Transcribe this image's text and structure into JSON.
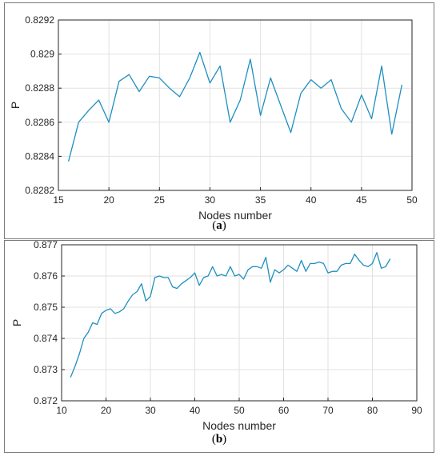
{
  "chart_data": [
    {
      "type": "line",
      "panel_label": "a",
      "xlabel": "Nodes number",
      "ylabel": "P",
      "xlim": [
        15,
        50
      ],
      "ylim": [
        0.8282,
        0.8292
      ],
      "xticks": [
        "15",
        "20",
        "25",
        "30",
        "35",
        "40",
        "45",
        "50"
      ],
      "yticks": [
        "0.8282",
        "0.8284",
        "0.8286",
        "0.8288",
        "0.829",
        "0.8292"
      ],
      "grid": true,
      "color": "#1f8fbf",
      "x": [
        16,
        17,
        18,
        19,
        20,
        21,
        22,
        23,
        24,
        25,
        26,
        27,
        28,
        29,
        30,
        31,
        32,
        33,
        34,
        35,
        36,
        37,
        38,
        39,
        40,
        41,
        42,
        43,
        44,
        45,
        46,
        47,
        48,
        49
      ],
      "y": [
        0.82837,
        0.8286,
        0.82867,
        0.82873,
        0.8286,
        0.82884,
        0.82888,
        0.82878,
        0.82887,
        0.82886,
        0.8288,
        0.82875,
        0.82886,
        0.82901,
        0.82883,
        0.82893,
        0.8286,
        0.82873,
        0.82897,
        0.82864,
        0.82886,
        0.8287,
        0.82854,
        0.82877,
        0.82885,
        0.8288,
        0.82885,
        0.82868,
        0.8286,
        0.82876,
        0.82862,
        0.82893,
        0.82853,
        0.82882
      ]
    },
    {
      "type": "line",
      "panel_label": "b",
      "xlabel": "Nodes number",
      "ylabel": "P",
      "xlim": [
        10,
        90
      ],
      "ylim": [
        0.872,
        0.877
      ],
      "xticks": [
        "10",
        "20",
        "30",
        "40",
        "50",
        "60",
        "70",
        "80",
        "90"
      ],
      "yticks": [
        "0.872",
        "0.873",
        "0.874",
        "0.875",
        "0.876",
        "0.877"
      ],
      "grid": true,
      "color": "#1f8fbf",
      "x": [
        12,
        13,
        14,
        15,
        16,
        17,
        18,
        19,
        20,
        21,
        22,
        23,
        24,
        25,
        26,
        27,
        28,
        29,
        30,
        31,
        32,
        33,
        34,
        35,
        36,
        37,
        38,
        39,
        40,
        41,
        42,
        43,
        44,
        45,
        46,
        47,
        48,
        49,
        50,
        51,
        52,
        53,
        54,
        55,
        56,
        57,
        58,
        59,
        60,
        61,
        62,
        63,
        64,
        65,
        66,
        67,
        68,
        69,
        70,
        71,
        72,
        73,
        74,
        75,
        76,
        77,
        78,
        79,
        80,
        81,
        82,
        83,
        84
      ],
      "y": [
        0.87275,
        0.8731,
        0.8735,
        0.874,
        0.8742,
        0.8745,
        0.87445,
        0.8748,
        0.8749,
        0.87495,
        0.8748,
        0.87485,
        0.87495,
        0.8752,
        0.8754,
        0.8755,
        0.87575,
        0.8752,
        0.87535,
        0.87595,
        0.876,
        0.87595,
        0.87595,
        0.87565,
        0.8756,
        0.87575,
        0.87585,
        0.87595,
        0.8761,
        0.8757,
        0.87595,
        0.876,
        0.8763,
        0.876,
        0.87605,
        0.876,
        0.8763,
        0.876,
        0.87605,
        0.8759,
        0.8762,
        0.8763,
        0.8763,
        0.87625,
        0.8766,
        0.8758,
        0.8762,
        0.8761,
        0.8762,
        0.87635,
        0.87625,
        0.87615,
        0.8765,
        0.87615,
        0.8764,
        0.8764,
        0.87645,
        0.8764,
        0.8761,
        0.87615,
        0.87615,
        0.87635,
        0.8764,
        0.8764,
        0.8767,
        0.8765,
        0.87635,
        0.8763,
        0.8764,
        0.87675,
        0.87625,
        0.8763,
        0.87655
      ]
    }
  ]
}
